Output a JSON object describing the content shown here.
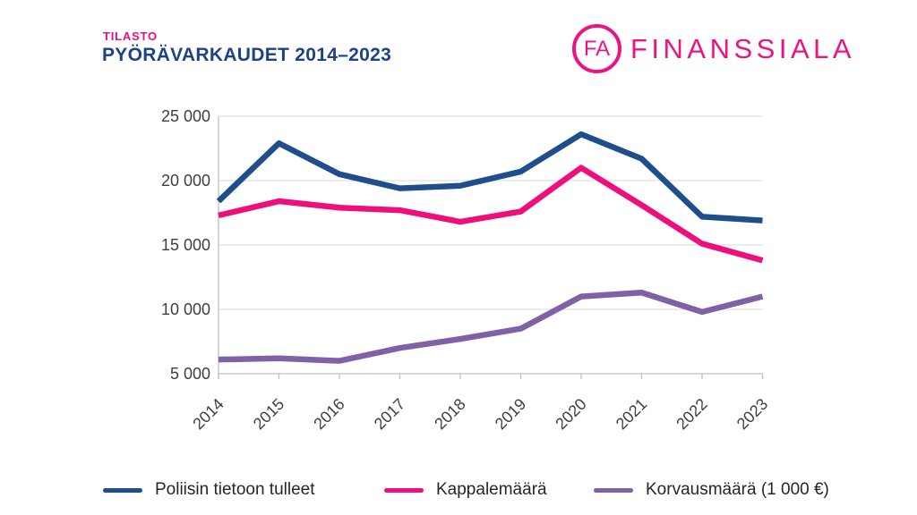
{
  "header": {
    "kicker": "TILASTO",
    "title": "PYÖRÄVARKAUDET 2014–2023"
  },
  "logo": {
    "monogram": "FA",
    "brand": "FINANSSIALA"
  },
  "chart_data": {
    "type": "line",
    "title": "Pyörävarkaudet 2014–2023",
    "x": [
      "2014",
      "2015",
      "2016",
      "2017",
      "2018",
      "2019",
      "2020",
      "2021",
      "2022",
      "2023"
    ],
    "series": [
      {
        "name": "Poliisin tietoon tulleet",
        "color": "#1f4e8c",
        "values": [
          18400,
          22900,
          20500,
          19400,
          19600,
          20700,
          23600,
          21700,
          17200,
          16900
        ]
      },
      {
        "name": "Kappalemäärä",
        "color": "#ed0f7b",
        "values": [
          17300,
          18400,
          17900,
          17700,
          16800,
          17600,
          21000,
          18100,
          15100,
          13800
        ]
      },
      {
        "name": "Korvausmäärä (1 000 €)",
        "color": "#8161a5",
        "values": [
          6100,
          6200,
          6000,
          7000,
          7700,
          8500,
          11000,
          11300,
          9800,
          11000
        ]
      }
    ],
    "y_axis": {
      "min": 5000,
      "max": 25000,
      "tick_interval": 5000,
      "tick_values": [
        5000,
        10000,
        15000,
        20000,
        25000
      ],
      "tick_labels": [
        "5 000",
        "10 000",
        "15 000",
        "20 000",
        "25 000"
      ]
    },
    "grid": "horizontal",
    "legend_position": "bottom"
  },
  "colors": {
    "accent_pink": "#ec1383",
    "title_blue": "#1c4287",
    "axis_text": "#3f3f3f",
    "gridline": "#e0e0e0",
    "axis_line": "#c0c0c0",
    "legend_text": "#262626"
  }
}
